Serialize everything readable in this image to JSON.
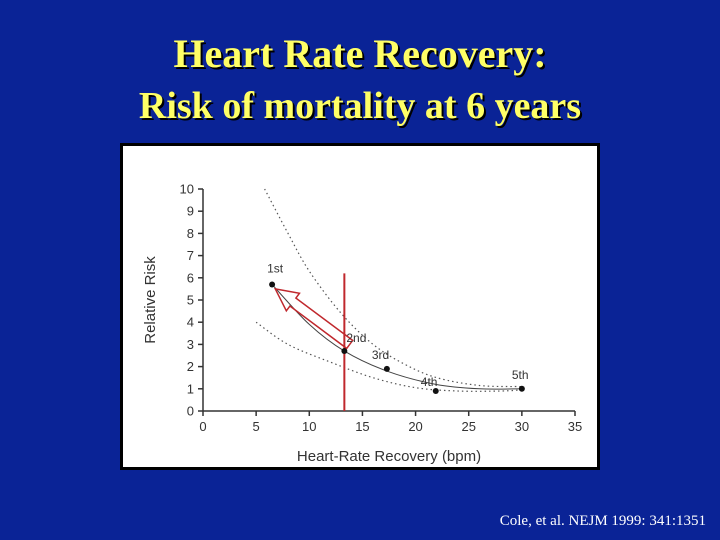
{
  "slide": {
    "title_line1": "Heart Rate Recovery:",
    "title_line2": "Risk of mortality at 6 years",
    "citation": "Cole, et al. NEJM 1999: 341:1351"
  },
  "colors": {
    "background": "#0a2396",
    "title": "#ffff66",
    "marker_line": "#c0282d",
    "arrow": "#c0282d"
  },
  "chart_data": {
    "type": "scatter",
    "xlabel": "Heart-Rate Recovery (bpm)",
    "ylabel": "Relative Risk",
    "xlim": [
      0,
      35
    ],
    "ylim": [
      0,
      10
    ],
    "xticks": [
      0,
      5,
      10,
      15,
      20,
      25,
      30,
      35
    ],
    "yticks": [
      0,
      1,
      2,
      3,
      4,
      5,
      6,
      7,
      8,
      9,
      10
    ],
    "points": [
      {
        "label": "1st",
        "x": 6.5,
        "y": 5.7
      },
      {
        "label": "2nd",
        "x": 13.3,
        "y": 2.7
      },
      {
        "label": "3rd",
        "x": 17.3,
        "y": 1.9
      },
      {
        "label": "4th",
        "x": 21.9,
        "y": 0.9
      },
      {
        "label": "5th",
        "x": 30.0,
        "y": 1.0
      }
    ],
    "fit_curve": {
      "name": "fit",
      "x": [
        6.5,
        10,
        13.3,
        17.3,
        21.9,
        26,
        30
      ],
      "y": [
        5.7,
        3.9,
        2.7,
        1.8,
        1.2,
        1.0,
        1.0
      ]
    },
    "confidence_bands": [
      {
        "name": "upper",
        "x": [
          5.8,
          8,
          10,
          13,
          16,
          19,
          22,
          26,
          30
        ],
        "y": [
          10,
          8.0,
          6.3,
          4.4,
          3.0,
          2.1,
          1.5,
          1.15,
          1.1
        ]
      },
      {
        "name": "lower",
        "x": [
          5,
          8,
          12,
          16,
          20,
          24,
          28,
          30
        ],
        "y": [
          4.0,
          3.0,
          2.2,
          1.5,
          1.05,
          0.9,
          0.9,
          0.95
        ]
      }
    ],
    "reference_line_x": 13.3,
    "annotation_arrow": {
      "from": [
        13.8,
        3.0
      ],
      "to": [
        6.8,
        5.5
      ]
    }
  }
}
